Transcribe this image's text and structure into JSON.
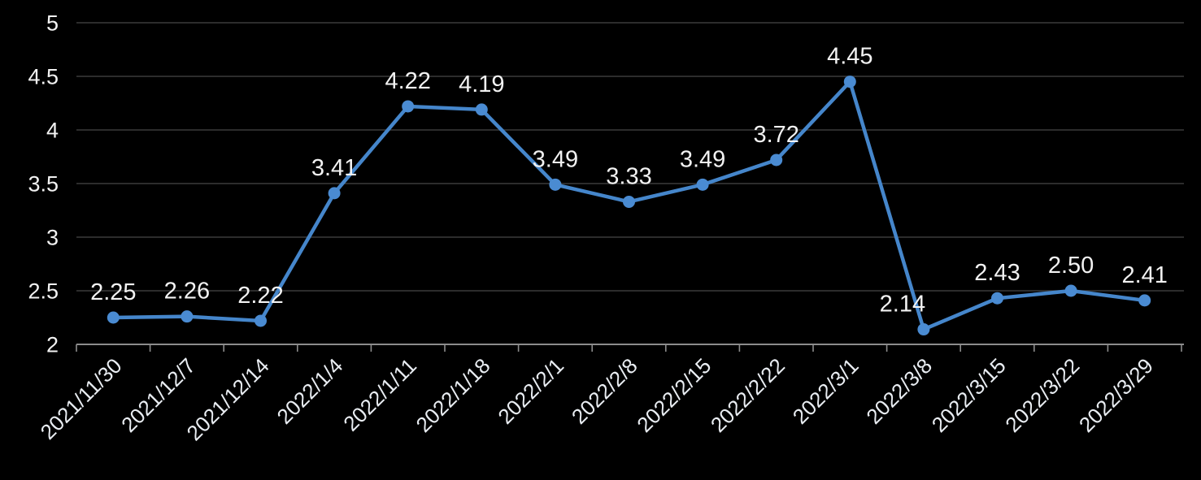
{
  "chart_data": {
    "type": "line",
    "title": "",
    "xlabel": "",
    "ylabel": "",
    "categories": [
      "2021/11/30",
      "2021/12/7",
      "2021/12/14",
      "2022/1/4",
      "2022/1/11",
      "2022/1/18",
      "2022/2/1",
      "2022/2/8",
      "2022/2/15",
      "2022/2/22",
      "2022/3/1",
      "2022/3/8",
      "2022/3/15",
      "2022/3/22",
      "2022/3/29"
    ],
    "series": [
      {
        "name": "series-1",
        "values": [
          2.25,
          2.26,
          2.22,
          3.41,
          4.22,
          4.19,
          3.49,
          3.33,
          3.49,
          3.72,
          4.45,
          2.14,
          2.43,
          2.5,
          2.41
        ]
      }
    ],
    "data_labels": [
      "2.25",
      "2.26",
      "2.22",
      "3.41",
      "4.22",
      "4.19",
      "3.49",
      "3.33",
      "3.49",
      "3.72",
      "4.45",
      "2.14",
      "2.43",
      "2.50",
      "2.41"
    ],
    "ylim": [
      2,
      5
    ],
    "yticks": [
      2,
      2.5,
      3,
      3.5,
      4,
      4.5,
      5
    ],
    "ytick_labels": [
      "2",
      "2.5",
      "3",
      "3.5",
      "4",
      "4.5",
      "5"
    ],
    "grid": true,
    "legend": "none",
    "colors": {
      "background": "#000000",
      "line": "#4586cb",
      "marker": "#4a8bd2",
      "gridline": "#3a3a3a",
      "axis": "#8c8c8c",
      "ytick_label": "#f2f2f2",
      "xtick_label": "#e9edf2",
      "data_label": "#f2f2f2"
    }
  }
}
